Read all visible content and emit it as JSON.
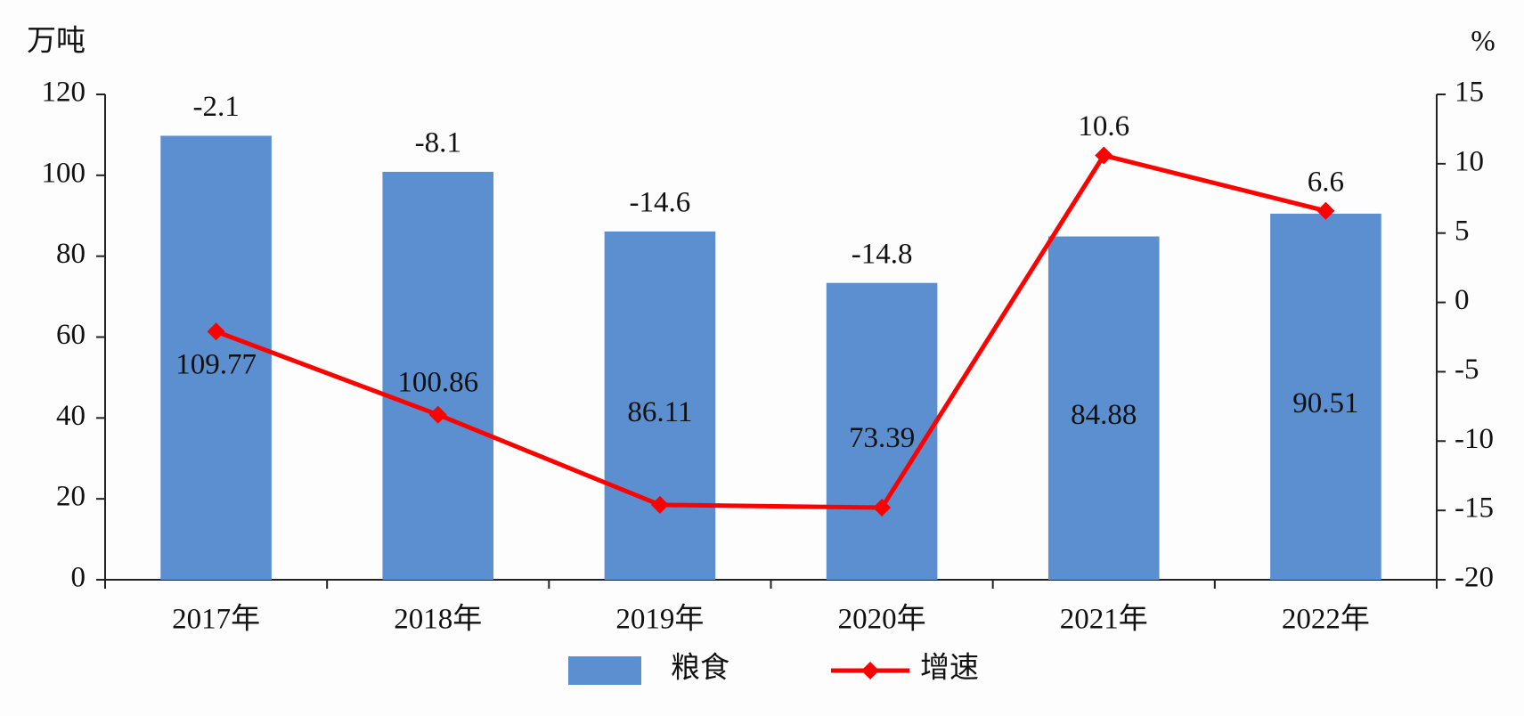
{
  "chart_data": {
    "type": "bar_line",
    "y_label": "万吨",
    "y2_label": "%",
    "categories": [
      "2017年",
      "2018年",
      "2019年",
      "2020年",
      "2021年",
      "2022年"
    ],
    "series": [
      {
        "name": "粮食",
        "type": "bar",
        "color": "#5b8fd0",
        "values": [
          109.77,
          100.86,
          86.11,
          73.39,
          84.88,
          90.51
        ]
      },
      {
        "name": "增速",
        "type": "line",
        "axis": "y2",
        "color": "#ff0000",
        "values": [
          -2.1,
          -8.1,
          -14.6,
          -14.8,
          10.6,
          6.6
        ]
      }
    ],
    "ylim": [
      0,
      120
    ],
    "yticks": [
      0,
      20,
      40,
      60,
      80,
      100,
      120
    ],
    "y2lim": [
      -20,
      15
    ],
    "y2ticks": [
      -20,
      -15,
      -10,
      -5,
      0,
      5,
      10,
      15
    ],
    "legend": "bottom"
  }
}
